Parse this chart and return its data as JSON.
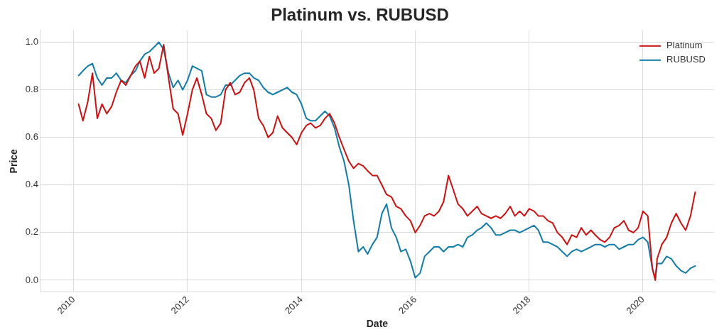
{
  "chart_data": {
    "type": "line",
    "title": "Platinum vs. RUBUSD",
    "xlabel": "Date",
    "ylabel": "Price",
    "x": [
      "2010-02",
      "2010-03",
      "2010-04",
      "2010-05",
      "2010-06",
      "2010-07",
      "2010-08",
      "2010-09",
      "2010-10",
      "2010-11",
      "2010-12",
      "2011-01",
      "2011-02",
      "2011-03",
      "2011-04",
      "2011-05",
      "2011-06",
      "2011-07",
      "2011-08",
      "2011-09",
      "2011-10",
      "2011-11",
      "2011-12",
      "2012-01",
      "2012-02",
      "2012-03",
      "2012-04",
      "2012-05",
      "2012-06",
      "2012-07",
      "2012-08",
      "2012-09",
      "2012-10",
      "2012-11",
      "2012-12",
      "2013-01",
      "2013-02",
      "2013-03",
      "2013-04",
      "2013-05",
      "2013-06",
      "2013-07",
      "2013-08",
      "2013-09",
      "2013-10",
      "2013-11",
      "2013-12",
      "2014-01",
      "2014-02",
      "2014-03",
      "2014-04",
      "2014-05",
      "2014-06",
      "2014-07",
      "2014-08",
      "2014-09",
      "2014-10",
      "2014-11",
      "2014-12",
      "2015-01",
      "2015-02",
      "2015-03",
      "2015-04",
      "2015-05",
      "2015-06",
      "2015-07",
      "2015-08",
      "2015-09",
      "2015-10",
      "2015-11",
      "2015-12",
      "2016-01",
      "2016-02",
      "2016-03",
      "2016-04",
      "2016-05",
      "2016-06",
      "2016-07",
      "2016-08",
      "2016-09",
      "2016-10",
      "2016-11",
      "2016-12",
      "2017-01",
      "2017-02",
      "2017-03",
      "2017-04",
      "2017-05",
      "2017-06",
      "2017-07",
      "2017-08",
      "2017-09",
      "2017-10",
      "2017-11",
      "2017-12",
      "2018-01",
      "2018-02",
      "2018-03",
      "2018-04",
      "2018-05",
      "2018-06",
      "2018-07",
      "2018-08",
      "2018-09",
      "2018-10",
      "2018-11",
      "2018-12",
      "2019-01",
      "2019-02",
      "2019-03",
      "2019-04",
      "2019-05",
      "2019-06",
      "2019-07",
      "2019-08",
      "2019-09",
      "2019-10",
      "2019-11",
      "2019-12",
      "2020-01",
      "2020-02",
      "2020-03",
      "2020-03-20",
      "2020-04",
      "2020-05",
      "2020-06",
      "2020-07",
      "2020-08",
      "2020-09",
      "2020-10",
      "2020-11",
      "2020-12"
    ],
    "series": [
      {
        "name": "Platinum",
        "color": "#cc1010",
        "values": [
          0.74,
          0.67,
          0.75,
          0.87,
          0.68,
          0.74,
          0.7,
          0.73,
          0.79,
          0.84,
          0.82,
          0.86,
          0.9,
          0.92,
          0.85,
          0.94,
          0.87,
          0.89,
          0.99,
          0.85,
          0.72,
          0.7,
          0.61,
          0.7,
          0.8,
          0.85,
          0.78,
          0.7,
          0.68,
          0.63,
          0.66,
          0.8,
          0.83,
          0.78,
          0.79,
          0.83,
          0.85,
          0.8,
          0.68,
          0.65,
          0.6,
          0.62,
          0.69,
          0.64,
          0.62,
          0.6,
          0.57,
          0.62,
          0.65,
          0.66,
          0.64,
          0.65,
          0.68,
          0.7,
          0.66,
          0.6,
          0.55,
          0.5,
          0.47,
          0.49,
          0.48,
          0.46,
          0.44,
          0.44,
          0.4,
          0.36,
          0.35,
          0.31,
          0.3,
          0.27,
          0.25,
          0.2,
          0.23,
          0.27,
          0.28,
          0.27,
          0.29,
          0.33,
          0.44,
          0.38,
          0.32,
          0.3,
          0.27,
          0.29,
          0.31,
          0.28,
          0.27,
          0.26,
          0.27,
          0.26,
          0.28,
          0.31,
          0.27,
          0.29,
          0.27,
          0.3,
          0.29,
          0.27,
          0.27,
          0.25,
          0.24,
          0.2,
          0.18,
          0.15,
          0.19,
          0.18,
          0.22,
          0.19,
          0.21,
          0.19,
          0.17,
          0.16,
          0.18,
          0.22,
          0.23,
          0.25,
          0.21,
          0.2,
          0.22,
          0.29,
          0.27,
          0.05,
          0.0,
          0.09,
          0.15,
          0.18,
          0.24,
          0.28,
          0.24,
          0.21,
          0.27,
          0.37
        ]
      },
      {
        "name": "RUBUSD",
        "color": "#117ba8",
        "values": [
          0.86,
          0.88,
          0.9,
          0.91,
          0.85,
          0.82,
          0.85,
          0.85,
          0.87,
          0.84,
          0.83,
          0.86,
          0.88,
          0.92,
          0.95,
          0.96,
          0.98,
          1.0,
          0.97,
          0.87,
          0.81,
          0.84,
          0.8,
          0.84,
          0.9,
          0.89,
          0.88,
          0.78,
          0.77,
          0.77,
          0.78,
          0.82,
          0.82,
          0.84,
          0.86,
          0.87,
          0.87,
          0.85,
          0.84,
          0.81,
          0.79,
          0.78,
          0.79,
          0.8,
          0.81,
          0.79,
          0.78,
          0.74,
          0.68,
          0.67,
          0.67,
          0.69,
          0.71,
          0.69,
          0.64,
          0.56,
          0.5,
          0.4,
          0.25,
          0.12,
          0.14,
          0.11,
          0.15,
          0.18,
          0.28,
          0.32,
          0.22,
          0.18,
          0.12,
          0.13,
          0.08,
          0.01,
          0.03,
          0.1,
          0.12,
          0.14,
          0.14,
          0.12,
          0.14,
          0.14,
          0.15,
          0.14,
          0.18,
          0.19,
          0.21,
          0.22,
          0.24,
          0.22,
          0.19,
          0.19,
          0.2,
          0.21,
          0.21,
          0.2,
          0.21,
          0.22,
          0.23,
          0.21,
          0.16,
          0.16,
          0.15,
          0.14,
          0.12,
          0.1,
          0.12,
          0.13,
          0.12,
          0.13,
          0.14,
          0.15,
          0.15,
          0.14,
          0.15,
          0.15,
          0.13,
          0.14,
          0.15,
          0.15,
          0.17,
          0.18,
          0.16,
          0.05,
          0.01,
          0.07,
          0.07,
          0.1,
          0.09,
          0.06,
          0.04,
          0.03,
          0.05,
          0.06
        ]
      }
    ],
    "xlim": [
      "2009-06",
      "2021-04"
    ],
    "xticks": [
      "2010",
      "2012",
      "2014",
      "2016",
      "2018",
      "2020"
    ],
    "ylim": [
      -0.05,
      1.05
    ],
    "yticks": [
      {
        "value": 0,
        "label": "0.0"
      },
      0.2,
      0.4,
      0.6,
      0.8,
      {
        "value": 1,
        "label": "1.0"
      }
    ],
    "grid": true,
    "legend": "top right",
    "marker": "none",
    "line_style": "solid"
  }
}
